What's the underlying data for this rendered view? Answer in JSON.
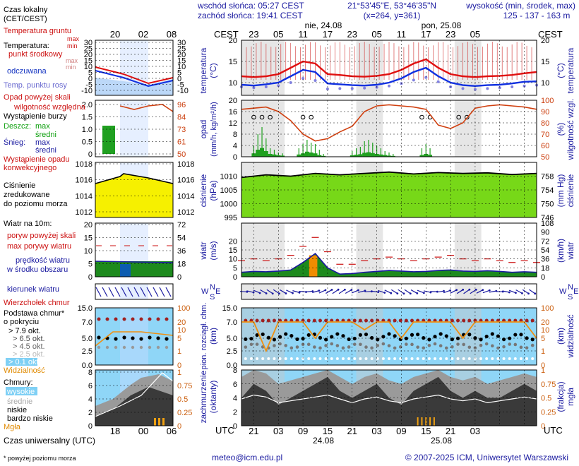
{
  "header": {
    "sunrise": "wschód słońca: 05:27 CEST",
    "sunset": "zachód słońca: 19:41 CEST",
    "coords": "21°53'45\"E, 53°46'35\"N",
    "grid": "(x=264, y=361)",
    "alt_title": "wysokość (min, środek, max)",
    "alt_values": "125 - 137 - 163 m",
    "date1": "nie, 24.08",
    "date2": "pon, 25.08",
    "cest": "CEST",
    "cest_ticks": [
      "23",
      "05",
      "11",
      "17",
      "23",
      "05",
      "11",
      "17",
      "23",
      "05"
    ],
    "legend_cest_ticks": [
      "20",
      "02",
      "08"
    ]
  },
  "footer": {
    "email": "meteo@icm.edu.pl",
    "copyright": "© 2007-2025 ICM, Uniwersytet Warszawski",
    "note": "* powyżej poziomu morza",
    "utc": "UTC",
    "utc_ticks": [
      "21",
      "03",
      "09",
      "15",
      "21",
      "03",
      "09",
      "15",
      "21",
      "03"
    ],
    "utc_date1": "24.08",
    "utc_date2": "25.08",
    "legend_utc_ticks": [
      "18",
      "00",
      "06"
    ],
    "legend_utc": "Czas uniwersalny (UTC)"
  },
  "legend": {
    "czas": "Czas lokalny",
    "czas2": "(CET/CEST)",
    "temp_gruntu": "Temperatura gruntu",
    "temp_gruntu_max": "max",
    "temp_gruntu_min": "min",
    "temperatura": "Temperatura:",
    "punkt": "punkt środkowy",
    "max": "max",
    "min": "min",
    "odczuwana": "odczuwana",
    "rosy": "Temp. punktu rosy",
    "opad_skali": "Opad powyżej skali",
    "wilg": "wilgotność względna",
    "burza": "Wystąpienie burzy",
    "deszcz": "Deszcz:",
    "snieg": "Śnieg:",
    "max2": "max",
    "srednia": "średni",
    "max3": "max",
    "srednia2": "średni",
    "konw1": "Wystąpienie opadu",
    "konw2": "konwekcyjnego",
    "cisn1": "Ciśnienie",
    "cisn2": "zredukowane",
    "cisn3": "do poziomu morza",
    "wiatr": "Wiatr na 10m:",
    "poryw_skali": "poryw powyżej skali",
    "max_porywy": "max porywy wiatru",
    "predkosc": "prędkość wiatru",
    "srodku": "w środku obszaru",
    "kierunek": "kierunek wiatru",
    "wierzcholek": "Wierzchołek chmur",
    "podstawa1": "Podstawa chmur*",
    "podstawa2": "o pokryciu",
    "okt": [
      "> 7.9 okt.",
      "> 6.5 okt.",
      "> 4.5 okt.",
      "> 2.5 okt.",
      "> 0.1 okt."
    ],
    "widzialnosc": "Widzialność",
    "chmury": "Chmury:",
    "wysokie": "wysokie",
    "srednie": "średnie",
    "niskie": "niskie",
    "bardzo_niskie": "bardzo niskie",
    "mgla": "Mgła"
  },
  "axes": {
    "temp_l": "temperatura",
    "temp_l2": "(°C)",
    "temp_r": "temperatura",
    "temp_r2": "(°C)",
    "opad_l": "opad",
    "opad_l2": "(mm/h, kg/m²/h)",
    "opad_r": "wilgotność wzgl.",
    "opad_r2": "(%)",
    "cisn_l": "ciśnienie",
    "cisn_l2": "(hPa)",
    "cisn_r": "ciśnienie",
    "cisn_r2": "(mm Hg)",
    "wiatr_l": "wiatr",
    "wiatr_l2": "(m/s)",
    "wiatr_r": "wiatr",
    "wiatr_r2": "(km/h)",
    "chm_l": "pion. rozciągł. chm.",
    "chm_l2": "(km)",
    "chm_r": "widzialność",
    "chm_r2": "(km)",
    "zach_l": "zachmurzenie",
    "zach_l2": "(oktanty)",
    "zach_r": "mgła",
    "zach_r2": "(frakcja)",
    "compass_w": "W",
    "compass_n": "N",
    "compass_s": "S",
    "compass_e": "E"
  },
  "chart_data": [
    {
      "type": "line",
      "panel": "temperature",
      "y_left_ticks": [
        "10",
        "15",
        "20"
      ],
      "y_right_ticks": [
        "10",
        "15",
        "20"
      ],
      "legend_y_ticks_left": [
        "-10",
        "-5",
        "0",
        "5",
        "10",
        "15",
        "20",
        "25",
        "30"
      ],
      "legend_y_ticks_right": [
        "-10",
        "-5",
        "0",
        "5",
        "10",
        "15",
        "20",
        "25",
        "30"
      ],
      "ylim": [
        7,
        20
      ],
      "x_hours": [
        0,
        3,
        6,
        9,
        12,
        15,
        18,
        21,
        24,
        27,
        30,
        33,
        36,
        39,
        42,
        45,
        48,
        51,
        54,
        57,
        60,
        63,
        66,
        69,
        72
      ],
      "series": [
        {
          "name": "punkt środkowy",
          "color": "#e01010",
          "values": [
            11.5,
            11.3,
            11.5,
            12.0,
            13.5,
            15.0,
            14.5,
            12.0,
            11.8,
            11.5,
            11.4,
            11.6,
            12.0,
            13.0,
            14.5,
            15.5,
            13.5,
            12.0,
            11.5,
            11.3,
            11.5,
            11.6,
            11.8,
            12.2,
            12.5
          ]
        },
        {
          "name": "odczuwana",
          "color": "#1030e0",
          "values": [
            9.5,
            9.3,
            9.6,
            10.0,
            11.5,
            13.0,
            12.5,
            9.8,
            9.6,
            9.4,
            9.3,
            9.5,
            10.0,
            11.0,
            12.5,
            13.5,
            11.5,
            10.0,
            9.4,
            9.2,
            9.4,
            9.5,
            9.8,
            10.2,
            10.3
          ]
        },
        {
          "name": "Temp. punktu rosy",
          "color": "#8080e0",
          "values": [
            9.0,
            8.8,
            9.0,
            9.3,
            10.0,
            11.0,
            10.5,
            8.5,
            8.6,
            8.6,
            8.7,
            8.9,
            9.2,
            9.8,
            10.6,
            11.2,
            10.2,
            9.0,
            8.6,
            8.4,
            8.6,
            8.8,
            9.0,
            9.2,
            9.4
          ]
        }
      ]
    },
    {
      "type": "bar",
      "panel": "precipitation",
      "y_left_ticks": [
        "0",
        "4",
        "8",
        "12",
        "16",
        "20"
      ],
      "y_right_ticks": [
        "50",
        "60",
        "70",
        "80",
        "90",
        "100"
      ],
      "legend_y_ticks_left": [
        "0",
        "0.5",
        "1.0",
        "1.5",
        "2.0"
      ],
      "legend_y_ticks_right": [
        "50",
        "61",
        "73",
        "84",
        "96"
      ],
      "ylim": [
        0,
        20
      ],
      "humidity_hours": [
        0,
        3,
        6,
        9,
        12,
        15,
        18,
        21,
        24,
        27,
        30,
        33,
        36,
        39,
        42,
        45,
        48,
        51,
        54,
        57,
        60,
        63,
        66,
        69,
        72
      ],
      "humidity": [
        92,
        93,
        94,
        90,
        82,
        70,
        64,
        66,
        72,
        77,
        90,
        95,
        96,
        95,
        94,
        92,
        78,
        75,
        80,
        93,
        95,
        96,
        95,
        94,
        92
      ],
      "rain_hours": [
        3,
        4,
        5,
        6,
        7,
        8,
        9,
        10,
        14,
        15,
        16,
        17,
        18,
        19,
        20,
        27,
        28,
        29,
        30,
        31,
        32,
        33,
        34,
        35,
        36,
        37,
        44,
        45,
        46
      ],
      "rain_mean": [
        1.2,
        2.5,
        3.1,
        2.0,
        1.0,
        0.8,
        0.5,
        0.4,
        0.8,
        1.2,
        1.8,
        1.5,
        1.2,
        0.6,
        0.3,
        0.5,
        0.7,
        0.9,
        1.4,
        1.6,
        1.3,
        1.0,
        0.8,
        0.6,
        0.4,
        0.3,
        0.6,
        1.0,
        0.7
      ],
      "rain_max": [
        4.0,
        8.0,
        10.5,
        6.5,
        3.0,
        2.5,
        1.5,
        1.2,
        3.0,
        4.5,
        6.0,
        5.0,
        4.5,
        2.5,
        1.0,
        2.0,
        3.0,
        3.5,
        5.5,
        6.0,
        5.0,
        4.0,
        3.0,
        2.0,
        1.5,
        1.0,
        3.0,
        4.5,
        3.0
      ]
    },
    {
      "type": "area",
      "panel": "pressure",
      "y_left_ticks": [
        "995",
        "1000",
        "1005",
        "1010"
      ],
      "y_right_ticks": [
        "746",
        "750",
        "754",
        "758"
      ],
      "legend_y_ticks_left": [
        "1012",
        "1014",
        "1016",
        "1018"
      ],
      "legend_y_ticks_right": [
        "1012",
        "1014",
        "1016",
        "1018"
      ],
      "ylim": [
        995,
        1015
      ],
      "x_hours": [
        0,
        6,
        12,
        18,
        24,
        30,
        36,
        42,
        48,
        54,
        60,
        66,
        72
      ],
      "values": [
        1009.5,
        1010.5,
        1010.0,
        1011.0,
        1010.5,
        1011.0,
        1011.5,
        1010.8,
        1011.3,
        1011.0,
        1011.2,
        1010.6,
        1011.0
      ]
    },
    {
      "type": "area",
      "panel": "wind",
      "y_left_ticks": [
        "0",
        "5",
        "10",
        "15",
        "20"
      ],
      "y_right_ticks": [
        "0",
        "18",
        "36",
        "54",
        "72",
        "90",
        "108"
      ],
      "legend_y_ticks_left": [
        "0",
        "5",
        "10",
        "15",
        "20"
      ],
      "legend_y_ticks_right": [
        "0",
        "18",
        "36",
        "54",
        "72"
      ],
      "ylim": [
        0,
        30
      ],
      "x_hours": [
        0,
        3,
        6,
        9,
        12,
        15,
        18,
        21,
        24,
        27,
        30,
        33,
        36,
        39,
        42,
        45,
        48,
        51,
        54,
        57,
        60,
        63,
        66,
        69,
        72
      ],
      "speed": [
        2.5,
        3.0,
        2.8,
        3.2,
        3.8,
        8.0,
        13.0,
        5.0,
        1.5,
        1.8,
        2.5,
        3.0,
        3.5,
        3.2,
        2.8,
        3.0,
        3.5,
        3.8,
        3.2,
        3.0,
        3.4,
        3.0,
        2.5,
        2.8,
        2.5
      ],
      "gust": [
        9,
        10,
        9,
        10,
        12,
        17,
        22,
        14,
        7,
        7,
        9,
        10,
        11,
        10,
        9,
        10,
        11,
        12,
        10,
        9,
        10,
        9,
        8,
        9,
        8
      ]
    },
    {
      "type": "line",
      "panel": "clouds",
      "y_left_ticks": [
        "0.0",
        "2.5",
        "5.0",
        "7.0",
        "15.0"
      ],
      "y_right_ticks": [
        "0",
        "1",
        "5",
        "10",
        "20",
        "100"
      ],
      "legend_y_ticks_left": [
        "0.0",
        "2.5",
        "5.0",
        "7.0",
        "15.0"
      ],
      "legend_y_ticks_right": [
        "0",
        "1",
        "5",
        "10",
        "20",
        "100"
      ],
      "x_hours": [
        0,
        3,
        6,
        9,
        12,
        15,
        18,
        21,
        24,
        27,
        30,
        33,
        36,
        39,
        42,
        45,
        48,
        51,
        54,
        57,
        60,
        63,
        66,
        69,
        72
      ],
      "visibility_km": [
        20,
        20,
        4,
        20,
        20,
        20,
        8,
        20,
        20,
        20,
        10,
        20,
        20,
        6,
        20,
        20,
        20,
        20,
        8,
        20,
        20,
        20,
        20,
        20,
        5
      ]
    },
    {
      "type": "area",
      "panel": "cloud_cover",
      "y_left_ticks": [
        "0",
        "2",
        "4",
        "6",
        "8"
      ],
      "y_right_ticks": [
        "0",
        "0.25",
        "0.5",
        "0.75",
        "1"
      ],
      "legend_y_ticks_left": [
        "0",
        "2",
        "4",
        "6",
        "8"
      ],
      "legend_y_ticks_right": [
        "0",
        "0.25",
        "0.5",
        "0.75",
        "1"
      ],
      "x_hours": [
        0,
        3,
        6,
        9,
        12,
        15,
        18,
        21,
        24,
        27,
        30,
        33,
        36,
        39,
        42,
        45,
        48,
        51,
        54,
        57,
        60,
        63,
        66,
        69,
        72
      ],
      "total_okt": [
        7,
        8,
        7.5,
        6,
        6.5,
        7,
        7.5,
        8,
        7,
        6,
        7,
        7.5,
        6.5,
        6,
        7,
        7.5,
        8,
        7,
        6.5,
        7,
        6,
        6.5,
        7,
        7.5,
        7
      ],
      "high_okt": [
        4,
        6,
        5,
        3,
        4,
        5,
        6,
        7,
        5,
        4,
        5,
        6,
        4,
        3,
        5,
        6,
        7,
        5,
        4,
        5,
        4,
        4,
        5,
        6,
        5
      ]
    }
  ]
}
